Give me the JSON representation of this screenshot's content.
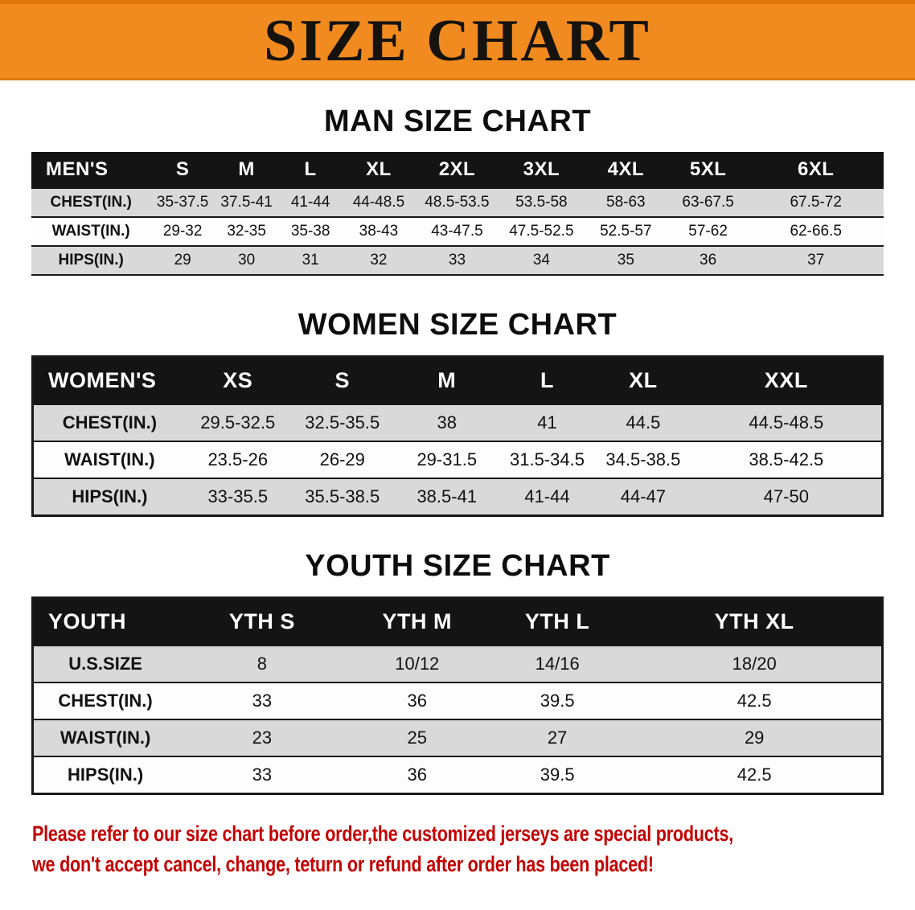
{
  "banner": {
    "title": "SIZE CHART",
    "bg_color": "#F18A1F",
    "text_color": "#16130E"
  },
  "sections": [
    {
      "id": "men",
      "heading": "MAN SIZE CHART",
      "table": {
        "header": [
          "MEN'S",
          "S",
          "M",
          "L",
          "XL",
          "2XL",
          "3XL",
          "4XL",
          "5XL",
          "6XL"
        ],
        "rows": [
          [
            "CHEST(IN.)",
            "35-37.5",
            "37.5-41",
            "41-44",
            "44-48.5",
            "48.5-53.5",
            "53.5-58",
            "58-63",
            "63-67.5",
            "67.5-72"
          ],
          [
            "WAIST(IN.)",
            "29-32",
            "32-35",
            "35-38",
            "38-43",
            "43-47.5",
            "47.5-52.5",
            "52.5-57",
            "57-62",
            "62-66.5"
          ],
          [
            "HIPS(IN.)",
            "29",
            "30",
            "31",
            "32",
            "33",
            "34",
            "35",
            "36",
            "37"
          ]
        ]
      }
    },
    {
      "id": "women",
      "heading": "WOMEN SIZE CHART",
      "table": {
        "header": [
          "WOMEN'S",
          "XS",
          "S",
          "M",
          "L",
          "XL",
          "XXL"
        ],
        "rows": [
          [
            "CHEST(IN.)",
            "29.5-32.5",
            "32.5-35.5",
            "38",
            "41",
            "44.5",
            "44.5-48.5"
          ],
          [
            "WAIST(IN.)",
            "23.5-26",
            "26-29",
            "29-31.5",
            "31.5-34.5",
            "34.5-38.5",
            "38.5-42.5"
          ],
          [
            "HIPS(IN.)",
            "33-35.5",
            "35.5-38.5",
            "38.5-41",
            "41-44",
            "44-47",
            "47-50"
          ]
        ]
      }
    },
    {
      "id": "youth",
      "heading": "YOUTH SIZE CHART",
      "table": {
        "header": [
          "YOUTH",
          "YTH S",
          "YTH M",
          "YTH L",
          "YTH XL"
        ],
        "rows": [
          [
            "U.S.SIZE",
            "8",
            "10/12",
            "14/16",
            "18/20"
          ],
          [
            "CHEST(IN.)",
            "33",
            "36",
            "39.5",
            "42.5"
          ],
          [
            "WAIST(IN.)",
            "23",
            "25",
            "27",
            "29"
          ],
          [
            "HIPS(IN.)",
            "33",
            "36",
            "39.5",
            "42.5"
          ]
        ]
      }
    }
  ],
  "disclaimer": {
    "color": "#C40000",
    "lines": [
      "Please refer to our size chart before order,the customized jerseys are special products,",
      "we don't accept cancel, change, teturn or refund after order has been placed!"
    ]
  }
}
